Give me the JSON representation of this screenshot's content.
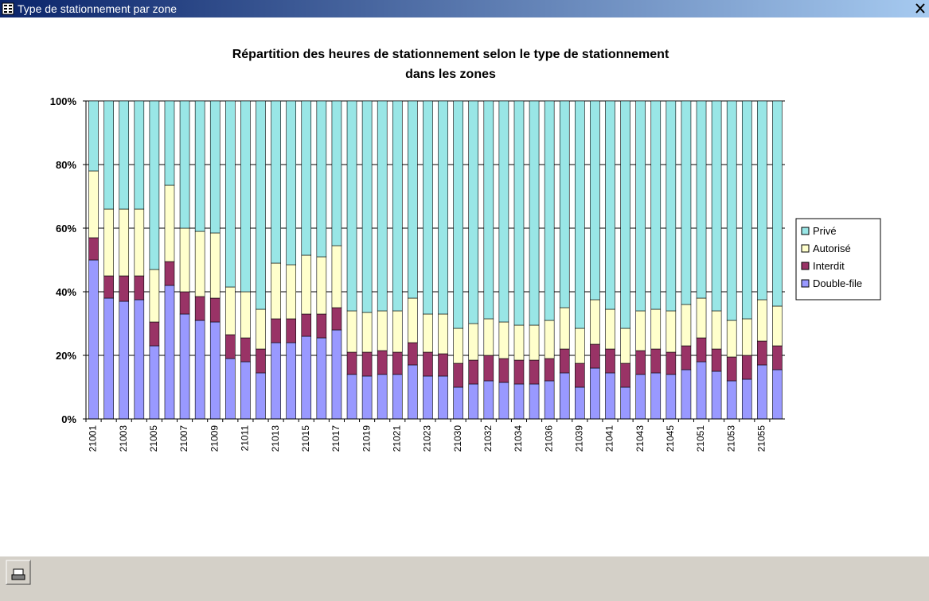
{
  "window": {
    "title": "Type de stationnement par zone"
  },
  "chart_data": {
    "type": "stacked_bar",
    "title": [
      "Répartition des heures de stationnement selon le type de stationnement",
      "dans les zones"
    ],
    "categories": [
      "21001",
      null,
      "21003",
      null,
      "21005",
      null,
      "21007",
      null,
      "21009",
      null,
      "21011",
      null,
      "21013",
      null,
      "21015",
      null,
      "21017",
      null,
      "21019",
      null,
      "21021",
      null,
      "21023",
      null,
      "21030",
      null,
      "21032",
      null,
      "21034",
      null,
      "21036",
      null,
      "21039",
      null,
      "21041",
      null,
      "21043",
      null,
      "21045",
      null,
      "21051",
      null,
      "21053",
      null,
      "21055",
      null
    ],
    "series": [
      {
        "name": "Double-file",
        "color": "#9999ff",
        "values": [
          50,
          38,
          37,
          37.5,
          23,
          42,
          33,
          31,
          30.5,
          19,
          18,
          14.5,
          24,
          24,
          26,
          25.5,
          28,
          14,
          13.5,
          14,
          14,
          17,
          13.5,
          13.5,
          10,
          11,
          12,
          11.5,
          11,
          11,
          12,
          14.5,
          10,
          16,
          14.5,
          10,
          14,
          14.5,
          14,
          15.5,
          18,
          15,
          12,
          12.5,
          17,
          15.5
        ]
      },
      {
        "name": "Interdit",
        "color": "#993366",
        "values": [
          7,
          7,
          8,
          7.5,
          7.5,
          7.5,
          7,
          7.5,
          7.5,
          7.5,
          7.5,
          7.5,
          7.5,
          7.5,
          7,
          7.5,
          7,
          7,
          7.5,
          7.5,
          7,
          7,
          7.5,
          7,
          7.5,
          7.5,
          8,
          7.5,
          7.5,
          7.5,
          7,
          7.5,
          7.5,
          7.5,
          7.5,
          7.5,
          7.5,
          7.5,
          7,
          7.5,
          7.5,
          7,
          7.5,
          7.5,
          7.5,
          7.5
        ]
      },
      {
        "name": "Autorisé",
        "color": "#ffffcc",
        "values": [
          21,
          21,
          21,
          21,
          16.5,
          24,
          20,
          20.5,
          20.5,
          15,
          14.5,
          12.5,
          17.5,
          17,
          18.5,
          18,
          19.5,
          13,
          12.5,
          12.5,
          13,
          14,
          12,
          12.5,
          11,
          11.5,
          11.5,
          11.5,
          11,
          11,
          12,
          13,
          11,
          14,
          12.5,
          11,
          12.5,
          12.5,
          13,
          13,
          12.5,
          12,
          11.5,
          11.5,
          13,
          12.5
        ]
      },
      {
        "name": "Privé",
        "color": "#99e6e6",
        "values": [
          22,
          34,
          34,
          34,
          53,
          26.5,
          40,
          41,
          41.5,
          58.5,
          60,
          65.5,
          51,
          51.5,
          48.5,
          49,
          45.5,
          66,
          66.5,
          66,
          66,
          62,
          67,
          67,
          71.5,
          70,
          68.5,
          69.5,
          70.5,
          70.5,
          69,
          65,
          71.5,
          62.5,
          65.5,
          71.5,
          66,
          65.5,
          66,
          64,
          62,
          66,
          69,
          68.5,
          62.5,
          64.5
        ]
      }
    ],
    "ylim": [
      0,
      100
    ],
    "yticks": [
      {
        "value": 0,
        "label": "0%"
      },
      {
        "value": 20,
        "label": "20%"
      },
      {
        "value": 40,
        "label": "40%"
      },
      {
        "value": 60,
        "label": "60%"
      },
      {
        "value": 80,
        "label": "80%"
      },
      {
        "value": 100,
        "label": "100%"
      }
    ],
    "grid": true,
    "legend": "right"
  }
}
